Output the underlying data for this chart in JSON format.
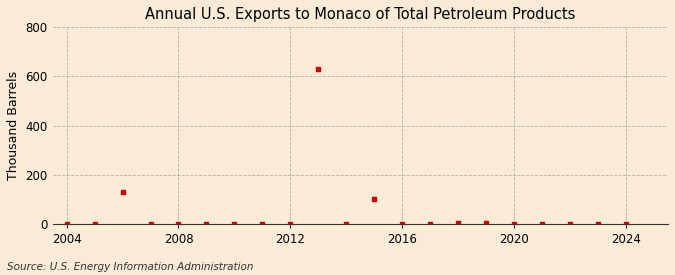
{
  "title": "Annual U.S. Exports to Monaco of Total Petroleum Products",
  "ylabel": "Thousand Barrels",
  "source": "Source: U.S. Energy Information Administration",
  "background_color": "#faebd7",
  "grid_color": "#999999",
  "marker_color": "#cc0000",
  "years": [
    2004,
    2005,
    2006,
    2007,
    2008,
    2009,
    2010,
    2011,
    2012,
    2013,
    2014,
    2015,
    2016,
    2017,
    2018,
    2019,
    2020,
    2021,
    2022,
    2023,
    2024
  ],
  "values": [
    0,
    0,
    130,
    0,
    0,
    0,
    0,
    0,
    0,
    630,
    0,
    100,
    0,
    0,
    5,
    5,
    0,
    0,
    0,
    0,
    0
  ],
  "xlim": [
    2003.5,
    2025.5
  ],
  "ylim": [
    0,
    800
  ],
  "yticks": [
    0,
    200,
    400,
    600,
    800
  ],
  "xticks": [
    2004,
    2008,
    2012,
    2016,
    2020,
    2024
  ]
}
